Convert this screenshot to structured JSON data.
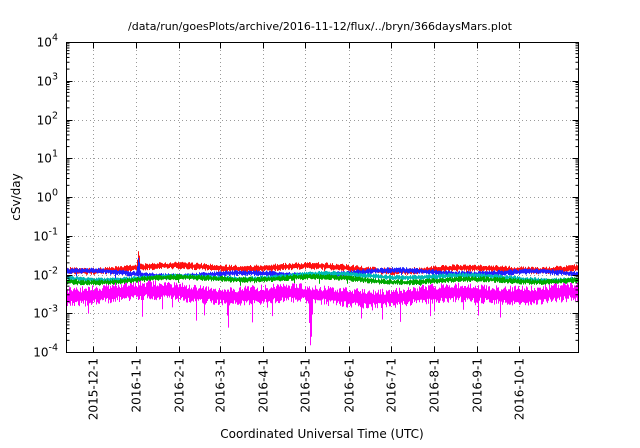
{
  "chart_data": {
    "type": "line",
    "title": "/data/run/goesPlots/archive/2016-11-12/flux/../bryn/366daysMars.plot",
    "xlabel": "Coordinated Universal Time (UTC)",
    "ylabel": "cSv/day",
    "grid": {
      "style": "dotted",
      "color": "#9a9a9a",
      "on": true
    },
    "legend": "none",
    "y_axis": {
      "scale": "log10",
      "range_exponents": [
        -4,
        4
      ],
      "tick_exponents": [
        4,
        3,
        2,
        1,
        0,
        -1,
        -2,
        -3,
        -4
      ],
      "minor_ticks": true
    },
    "x_axis": {
      "span_days": 366,
      "ticks": [
        {
          "label": "2015-12-1",
          "day": 19
        },
        {
          "label": "2016-1-1",
          "day": 50
        },
        {
          "label": "2016-2-1",
          "day": 81
        },
        {
          "label": "2016-3-1",
          "day": 110
        },
        {
          "label": "2016-4-1",
          "day": 141
        },
        {
          "label": "2016-5-1",
          "day": 171
        },
        {
          "label": "2016-6-1",
          "day": 202
        },
        {
          "label": "2016-7-1",
          "day": 232
        },
        {
          "label": "2016-8-1",
          "day": 263
        },
        {
          "label": "2016-9-1",
          "day": 294
        },
        {
          "label": "2016-10-1",
          "day": 324
        }
      ]
    },
    "series": [
      {
        "name": "red",
        "color": "#ff1010",
        "log_center": -1.84,
        "log_halfwidth": 0.1,
        "jitter": 0.05,
        "tail_prob": 0.01,
        "tail_max": 0.15,
        "seed": 11
      },
      {
        "name": "blue",
        "color": "#2020ff",
        "log_center": -1.97,
        "log_halfwidth": 0.08,
        "jitter": 0.05,
        "tail_prob": 0.01,
        "tail_max": 0.12,
        "seed": 22
      },
      {
        "name": "cyan",
        "color": "#00b8b8",
        "log_center": -2.06,
        "log_halfwidth": 0.07,
        "jitter": 0.05,
        "tail_prob": 0.01,
        "tail_max": 0.1,
        "seed": 33
      },
      {
        "name": "green",
        "color": "#00a800",
        "log_center": -2.13,
        "log_halfwidth": 0.08,
        "jitter": 0.05,
        "tail_prob": 0.02,
        "tail_max": 0.15,
        "seed": 44
      },
      {
        "name": "magenta",
        "color": "#ff00ff",
        "log_center": -2.52,
        "log_halfwidth": 0.26,
        "jitter": 0.06,
        "tail_prob": 0.05,
        "tail_max": 0.55,
        "seed": 55
      }
    ],
    "events": [
      {
        "series": "red",
        "type": "spike-up",
        "day": 52,
        "peak_log": -1.35
      },
      {
        "series": "blue",
        "type": "spike-up",
        "day": 52,
        "peak_log": -1.52
      },
      {
        "series": "magenta",
        "type": "spike-down",
        "day": 116,
        "trough_log": -3.5
      },
      {
        "series": "magenta",
        "type": "spike-down",
        "day": 175,
        "trough_log": -4.0
      }
    ]
  }
}
